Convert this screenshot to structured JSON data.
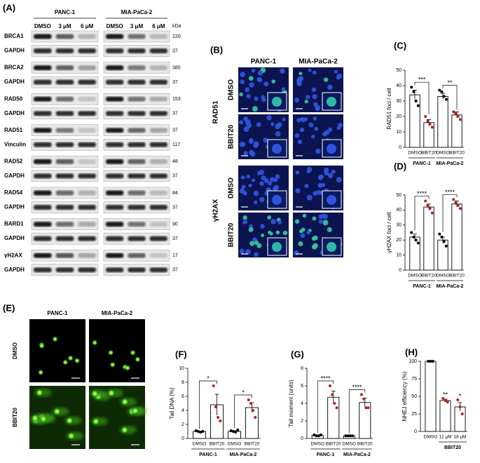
{
  "panel_labels": [
    "(A)",
    "(B)",
    "(C)",
    "(D)",
    "(E)",
    "(F)",
    "(G)",
    "(H)"
  ],
  "blot": {
    "cell_lines": [
      "PANC-1",
      "MIA-PaCa-2"
    ],
    "lanes": [
      "DMSO",
      "3 μM",
      "6 μM"
    ],
    "unit": "kDa",
    "rows": [
      {
        "protein": "BRCA1",
        "kda": 220
      },
      {
        "protein": "GAPDH",
        "kda": 37
      },
      {
        "protein": "BRCA2",
        "kda": 380
      },
      {
        "protein": "GAPDH",
        "kda": 37
      },
      {
        "protein": "RAD50",
        "kda": 153
      },
      {
        "protein": "GAPDH",
        "kda": 37
      },
      {
        "protein": "RAD51",
        "kda": 37
      },
      {
        "protein": "Vinculin",
        "kda": 117
      },
      {
        "protein": "RAD52",
        "kda": 48
      },
      {
        "protein": "GAPDH",
        "kda": 37
      },
      {
        "protein": "RAD54",
        "kda": 84
      },
      {
        "protein": "GAPDH",
        "kda": 37
      },
      {
        "protein": "BARD1",
        "kda": 90
      },
      {
        "protein": "GAPDH",
        "kda": 37
      },
      {
        "protein": "γH2AX",
        "kda": 17
      },
      {
        "protein": "GAPDH",
        "kda": 37
      }
    ]
  },
  "imaging": {
    "cell_lines": [
      "PANC-1",
      "MIA-PaCa-2"
    ],
    "stains": [
      {
        "label": "RAD51",
        "conditions": [
          "DMSO",
          "BBIT20"
        ]
      },
      {
        "label": "γH2AX",
        "conditions": [
          "DMSO",
          "BBIT20"
        ]
      }
    ]
  },
  "comet": {
    "cell_lines": [
      "PANC-1",
      "MIA-PaCa-2"
    ],
    "conditions": [
      "DMSO",
      "BBIT20"
    ]
  },
  "chart_data": [
    {
      "type": "bar",
      "y_label": "RAD51 foci / cell",
      "categories": [
        "DMSO",
        "BBIT20",
        "DMSO",
        "BBIT20"
      ],
      "groups": [
        "PANC-1",
        "MIA-PaCa-2"
      ],
      "values": [
        34,
        16,
        33,
        21
      ],
      "errors": [
        3,
        2,
        2,
        2
      ],
      "points": [
        [
          39,
          36,
          30,
          27
        ],
        [
          20,
          17,
          15,
          13
        ],
        [
          37,
          36,
          33,
          31
        ],
        [
          23,
          22,
          20,
          18
        ]
      ],
      "point_colors": [
        "#000000",
        "#b22222",
        "#000000",
        "#b22222"
      ],
      "annotations": [
        "***",
        "**"
      ],
      "ylim": [
        0,
        50
      ],
      "yticks": [
        0,
        10,
        20,
        30,
        40,
        50
      ]
    },
    {
      "type": "bar",
      "y_label": "γH2AX foci / cell",
      "categories": [
        "DMSO",
        "BBIT20",
        "DMSO",
        "BBIT20"
      ],
      "groups": [
        "PANC-1",
        "MIA-PaCa-2"
      ],
      "values": [
        22,
        42,
        20,
        44
      ],
      "errors": [
        2,
        2,
        2,
        2
      ],
      "points": [
        [
          25,
          22,
          20,
          18
        ],
        [
          46,
          43,
          41,
          38
        ],
        [
          24,
          22,
          19,
          16
        ],
        [
          47,
          45,
          43,
          41
        ]
      ],
      "point_colors": [
        "#000000",
        "#b22222",
        "#000000",
        "#b22222"
      ],
      "annotations": [
        "****",
        "****"
      ],
      "ylim": [
        0,
        50
      ],
      "yticks": [
        0,
        10,
        20,
        30,
        40,
        50
      ]
    },
    {
      "type": "bar",
      "y_label": "Tail DNA (%)",
      "categories": [
        "DMSO",
        "BBIT20",
        "DMSO",
        "BBIT20"
      ],
      "groups": [
        "PANC-1",
        "MIA-PaCa-2"
      ],
      "values": [
        1.0,
        4.8,
        1.0,
        4.4
      ],
      "errors": [
        0.05,
        1.5,
        0.1,
        0.7
      ],
      "points": [
        [
          1.1,
          1.0,
          0.9,
          1.0
        ],
        [
          7.5,
          4.5,
          3.0,
          2.5
        ],
        [
          1.1,
          1.0,
          0.9,
          1.2
        ],
        [
          5.5,
          5.0,
          4.0,
          3.0
        ]
      ],
      "point_colors": [
        "#000000",
        "#b22222",
        "#000000",
        "#b22222"
      ],
      "annotations": [
        "*",
        "*"
      ],
      "ylim": [
        0,
        10
      ],
      "yticks": [
        0,
        2,
        4,
        6,
        8,
        10
      ]
    },
    {
      "type": "bar",
      "y_label": "Tail moment (units)",
      "categories": [
        "DMSO",
        "BBIT20",
        "DMSO",
        "BBIT20"
      ],
      "groups": [
        "PANC-1",
        "MIA-PaCa-2"
      ],
      "values": [
        0.35,
        4.7,
        0.3,
        4.1
      ],
      "errors": [
        0.05,
        0.7,
        0.05,
        0.5
      ],
      "points": [
        [
          0.4,
          0.3,
          0.3,
          0.4
        ],
        [
          6.0,
          5.0,
          4.0,
          3.5
        ],
        [
          0.3,
          0.3,
          0.3,
          0.3
        ],
        [
          5.0,
          4.5,
          3.5,
          3.5
        ]
      ],
      "point_colors": [
        "#000000",
        "#b22222",
        "#000000",
        "#b22222"
      ],
      "annotations": [
        "****",
        "****"
      ],
      "ylim": [
        0,
        8
      ],
      "yticks": [
        0,
        2,
        4,
        6,
        8
      ]
    },
    {
      "type": "bar",
      "y_label": "NHEJ efficiency (%)",
      "categories": [
        "DMSO",
        "12 μM",
        "18 μM"
      ],
      "groups": [
        "BBIT20"
      ],
      "values": [
        100,
        44,
        35
      ],
      "errors": [
        0,
        2,
        6
      ],
      "points": [
        [
          100,
          100,
          100
        ],
        [
          47,
          44,
          42
        ],
        [
          45,
          35,
          25
        ]
      ],
      "point_colors": [
        "#000000",
        "#b22222",
        "#b22222"
      ],
      "annotations": [
        "**",
        "*"
      ],
      "ylim": [
        0,
        100
      ],
      "yticks": [
        0,
        25,
        50,
        75,
        100
      ]
    }
  ]
}
